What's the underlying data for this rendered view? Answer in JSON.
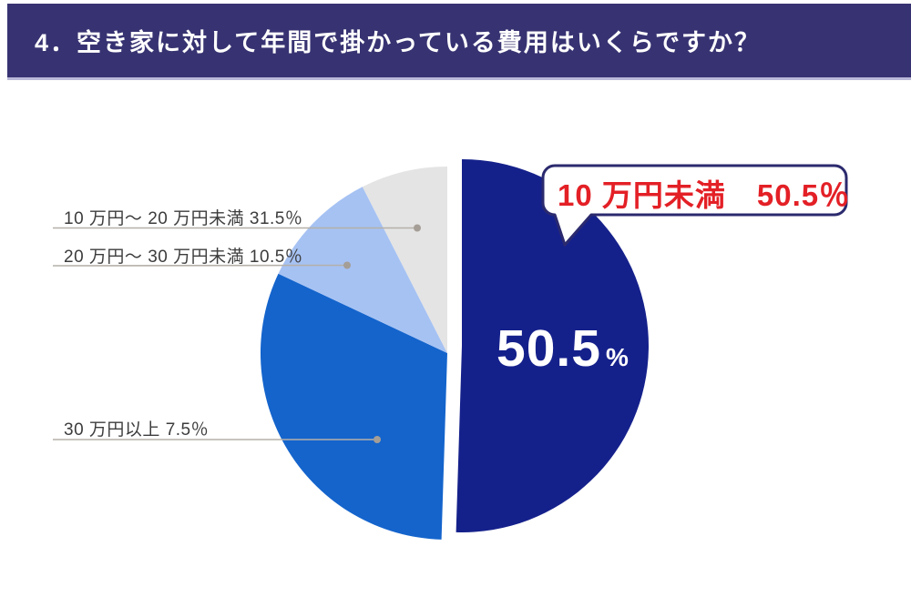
{
  "header": {
    "title": "4．空き家に対して年間で掛かっている費用はいくらですか？"
  },
  "colors": {
    "header_bg": "#373372",
    "header_border": "#b9b8d8",
    "callout_border": "#2b2a6e",
    "accent_red": "#e32026",
    "leader_line": "#b5b0a9",
    "leader_dot": "#a59e96",
    "label_text": "#3c3c3c"
  },
  "chart_data": {
    "type": "pie",
    "title": "空き家に対して年間で掛かっている費用（年間）",
    "unit": "%",
    "legend_position": "left-labels-with-leader-lines",
    "start_angle_deg": 0,
    "direction": "clockwise",
    "slices": [
      {
        "label": "10万円未満",
        "value": 50.5,
        "color": "#15218b",
        "exploded": true,
        "callout_text": "10 万円未満　50.5％",
        "big_value": "50.5",
        "big_unit": "%"
      },
      {
        "label": "10万円〜20万円未満",
        "value": 31.5,
        "color": "#1464cc",
        "side_label": "10 万円〜 20 万円未満  31.5％"
      },
      {
        "label": "20万円〜30万円未満",
        "value": 10.5,
        "color": "#a6c2f3",
        "side_label": "20 万円〜 30 万円未満  10.5％"
      },
      {
        "label": "30万円以上",
        "value": 7.5,
        "color": "#e4e4e4",
        "side_label": "30 万円以上  7.5％"
      }
    ]
  }
}
